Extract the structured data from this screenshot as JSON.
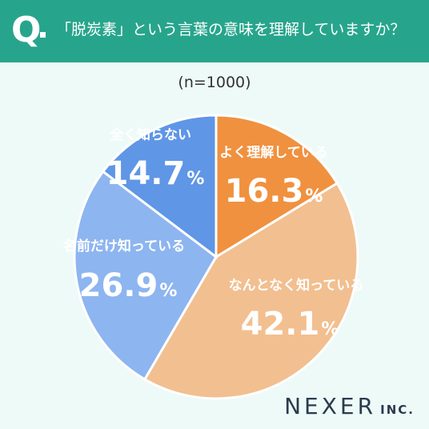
{
  "header": {
    "q_mark": "Q",
    "question": "「脱炭素」という言葉の意味を理解していますか？"
  },
  "sample_note": "(n=1000)",
  "brand": {
    "name": "NEXER",
    "suffix": "INC."
  },
  "chart_data": {
    "type": "pie",
    "title": "",
    "start_angle": 0,
    "direction": "clockwise",
    "slices": [
      {
        "label": "よく理解している",
        "value": 16.3,
        "display": "16.3",
        "unit": "%",
        "color": "#f0913f"
      },
      {
        "label": "なんとなく知っている",
        "value": 42.1,
        "display": "42.1",
        "unit": "%",
        "color": "#f2bf90"
      },
      {
        "label": "名前だけ知っている",
        "value": 26.9,
        "display": "26.9",
        "unit": "%",
        "color": "#8db5f0"
      },
      {
        "label": "全く知らない",
        "value": 14.7,
        "display": "14.7",
        "unit": "%",
        "color": "#5f96e6"
      }
    ]
  }
}
